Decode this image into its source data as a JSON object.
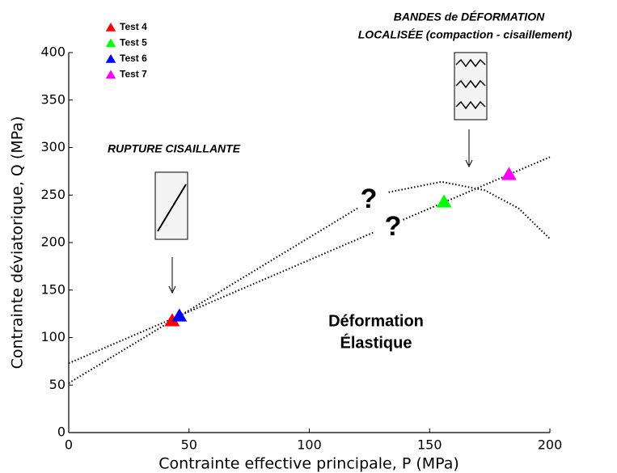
{
  "chart_data": {
    "type": "scatter",
    "xlabel": "Contrainte effective principale, P (MPa)",
    "ylabel": "Contrainte déviatorique, Q (MPa)",
    "xlim": [
      0,
      200
    ],
    "xticks": [
      0,
      50,
      100,
      150,
      200
    ],
    "ylim": [
      0,
      400
    ],
    "yticks": [
      0,
      50,
      100,
      150,
      200,
      250,
      300,
      350,
      400
    ],
    "series": [
      {
        "name": "Test 4",
        "color": "#ff0000",
        "x": [
          43
        ],
        "values": [
          118
        ]
      },
      {
        "name": "Test 5",
        "color": "#00ff00",
        "x": [
          156
        ],
        "values": [
          243
        ]
      },
      {
        "name": "Test 6",
        "color": "#0000ff",
        "x": [
          46
        ],
        "values": [
          123
        ]
      },
      {
        "name": "Test 7",
        "color": "#ff00ff",
        "x": [
          183
        ],
        "values": [
          272
        ]
      }
    ],
    "curves": [
      {
        "x": [
          0,
          120
        ],
        "values": [
          52,
          236
        ]
      },
      {
        "x": [
          0,
          127,
          130,
          139,
          200
        ],
        "values": [
          73,
          211,
          null,
          224,
          290
        ]
      },
      {
        "x": [
          133,
          155,
          173,
          187,
          200
        ],
        "values": [
          253,
          264,
          255,
          236,
          204
        ]
      }
    ],
    "annotations": [
      "RUPTURE CISAILLANTE",
      "BANDES de DÉFORMATION",
      "LOCALISÉE (compaction - cisaillement)",
      "?",
      "?",
      "Déformation",
      "Élastique"
    ]
  }
}
